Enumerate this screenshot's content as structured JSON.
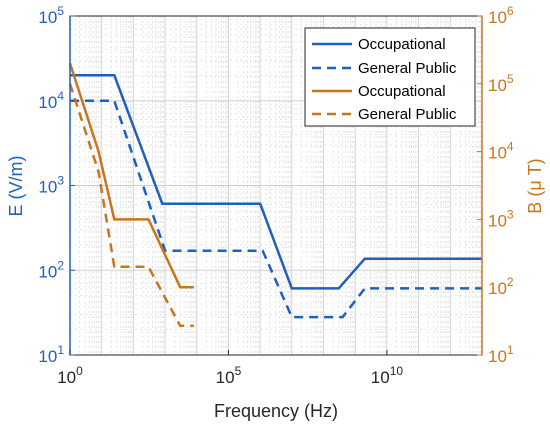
{
  "chart_data": {
    "type": "line",
    "xlabel": "Frequency (Hz)",
    "ylabel_left": "E (V/m)",
    "ylabel_right": "B (μ T)",
    "xscale": "log",
    "yscale_left": "log",
    "yscale_right": "log",
    "xlim": [
      1,
      10000000000000.0
    ],
    "ylim_left": [
      10,
      100000
    ],
    "ylim_right": [
      10,
      1000000
    ],
    "x_ticks": [
      {
        "value": 1,
        "base": "10",
        "exp": "0"
      },
      {
        "value": 100000,
        "base": "10",
        "exp": "5"
      },
      {
        "value": 10000000000,
        "base": "10",
        "exp": "10"
      }
    ],
    "y_left_ticks": [
      {
        "value": 10,
        "base": "10",
        "exp": "1"
      },
      {
        "value": 100,
        "base": "10",
        "exp": "2"
      },
      {
        "value": 1000,
        "base": "10",
        "exp": "3"
      },
      {
        "value": 10000,
        "base": "10",
        "exp": "4"
      },
      {
        "value": 100000,
        "base": "10",
        "exp": "5"
      }
    ],
    "y_right_ticks": [
      {
        "value": 10,
        "base": "10",
        "exp": "1"
      },
      {
        "value": 100,
        "base": "10",
        "exp": "2"
      },
      {
        "value": 1000,
        "base": "10",
        "exp": "3"
      },
      {
        "value": 10000,
        "base": "10",
        "exp": "4"
      },
      {
        "value": 100000,
        "base": "10",
        "exp": "5"
      },
      {
        "value": 1000000,
        "base": "10",
        "exp": "6"
      }
    ],
    "grid": true,
    "legend_position": "top-right",
    "series": [
      {
        "name": "Occupational",
        "axis": "left",
        "color": "#1f5fbf",
        "dash": "solid",
        "points": [
          [
            1,
            20000
          ],
          [
            25,
            20000
          ],
          [
            820,
            610
          ],
          [
            65000,
            610
          ],
          [
            1000000,
            610
          ],
          [
            10000000,
            61
          ],
          [
            300000000,
            61
          ],
          [
            2000000000,
            137
          ],
          [
            10000000000000.0,
            137
          ]
        ]
      },
      {
        "name": "General Public",
        "axis": "left",
        "color": "#1f5fbf",
        "dash": "dashed",
        "points": [
          [
            1,
            10000
          ],
          [
            25,
            10000
          ],
          [
            1000,
            170
          ],
          [
            3000,
            170
          ],
          [
            1200000,
            170
          ],
          [
            10000000,
            28
          ],
          [
            400000000,
            28
          ],
          [
            2000000000,
            61
          ],
          [
            10000000000000.0,
            61
          ]
        ]
      },
      {
        "name": "Occupational",
        "axis": "right",
        "color": "#c8761e",
        "dash": "solid",
        "points": [
          [
            1,
            200000
          ],
          [
            8,
            10000
          ],
          [
            25,
            1000
          ],
          [
            300,
            1000
          ],
          [
            3000,
            100
          ],
          [
            8000,
            100
          ]
        ]
      },
      {
        "name": "General Public",
        "axis": "right",
        "color": "#c8761e",
        "dash": "dashed",
        "points": [
          [
            1,
            100000
          ],
          [
            8,
            5000
          ],
          [
            25,
            200
          ],
          [
            300,
            200
          ],
          [
            3000,
            27
          ],
          [
            8000,
            27
          ]
        ]
      }
    ]
  }
}
